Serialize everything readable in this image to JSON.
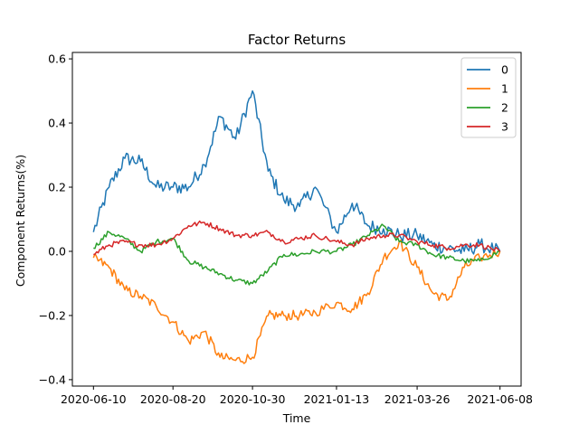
{
  "chart_data": {
    "type": "line",
    "title": "Factor Returns",
    "xlabel": "Time",
    "ylabel": "Component Returns(%)",
    "x_start": "2020-06-10",
    "x_end": "2021-06-08",
    "x_ticks": [
      "2020-06-10",
      "2020-08-20",
      "2020-10-30",
      "2021-01-13",
      "2021-03-26",
      "2021-06-08"
    ],
    "ylim": [
      -0.42,
      0.62
    ],
    "y_ticks": [
      -0.4,
      -0.2,
      0.0,
      0.2,
      0.4,
      0.6
    ],
    "y_tick_labels": [
      "−0.4",
      "−0.2",
      "0.0",
      "0.2",
      "0.4",
      "0.6"
    ],
    "legend_position": "top-right",
    "grid": false,
    "series": [
      {
        "name": "0",
        "color": "#1f77b4",
        "x": [
          "2020-06-10",
          "2020-06-24",
          "2020-07-08",
          "2020-07-22",
          "2020-08-05",
          "2020-08-20",
          "2020-09-03",
          "2020-09-17",
          "2020-10-01",
          "2020-10-15",
          "2020-10-30",
          "2020-11-13",
          "2020-11-27",
          "2020-12-11",
          "2020-12-25",
          "2021-01-13",
          "2021-01-27",
          "2021-02-10",
          "2021-02-24",
          "2021-03-10",
          "2021-03-26",
          "2021-04-09",
          "2021-04-23",
          "2021-05-07",
          "2021-05-21",
          "2021-06-08"
        ],
        "values": [
          0.06,
          0.2,
          0.29,
          0.28,
          0.2,
          0.2,
          0.2,
          0.27,
          0.42,
          0.35,
          0.5,
          0.25,
          0.16,
          0.14,
          0.2,
          0.06,
          0.15,
          0.08,
          0.07,
          0.05,
          0.05,
          0.02,
          0.01,
          0.0,
          0.02,
          0.0
        ]
      },
      {
        "name": "1",
        "color": "#ff7f0e",
        "x": [
          "2020-06-10",
          "2020-06-24",
          "2020-07-08",
          "2020-07-22",
          "2020-08-05",
          "2020-08-20",
          "2020-09-03",
          "2020-09-17",
          "2020-10-01",
          "2020-10-15",
          "2020-10-30",
          "2020-11-13",
          "2020-11-27",
          "2020-12-11",
          "2020-12-25",
          "2021-01-13",
          "2021-01-27",
          "2021-02-10",
          "2021-02-24",
          "2021-03-10",
          "2021-03-26",
          "2021-04-09",
          "2021-04-23",
          "2021-05-07",
          "2021-05-21",
          "2021-06-08"
        ],
        "values": [
          -0.02,
          -0.05,
          -0.12,
          -0.14,
          -0.17,
          -0.22,
          -0.28,
          -0.25,
          -0.33,
          -0.34,
          -0.33,
          -0.2,
          -0.2,
          -0.2,
          -0.19,
          -0.16,
          -0.18,
          -0.13,
          -0.02,
          0.03,
          -0.05,
          -0.13,
          -0.15,
          -0.05,
          -0.02,
          0.0
        ]
      },
      {
        "name": "2",
        "color": "#2ca02c",
        "x": [
          "2020-06-10",
          "2020-06-24",
          "2020-07-08",
          "2020-07-22",
          "2020-08-05",
          "2020-08-20",
          "2020-09-03",
          "2020-09-17",
          "2020-10-01",
          "2020-10-15",
          "2020-10-30",
          "2020-11-13",
          "2020-11-27",
          "2020-12-11",
          "2020-12-25",
          "2021-01-13",
          "2021-01-27",
          "2021-02-10",
          "2021-02-24",
          "2021-03-10",
          "2021-03-26",
          "2021-04-09",
          "2021-04-23",
          "2021-05-07",
          "2021-05-21",
          "2021-06-08"
        ],
        "values": [
          0.01,
          0.06,
          0.04,
          0.0,
          0.03,
          0.04,
          -0.03,
          -0.05,
          -0.07,
          -0.09,
          -0.1,
          -0.06,
          -0.01,
          -0.01,
          0.0,
          0.0,
          0.02,
          0.05,
          0.08,
          0.03,
          0.02,
          -0.01,
          -0.02,
          -0.03,
          -0.03,
          0.0
        ]
      },
      {
        "name": "3",
        "color": "#d62728",
        "x": [
          "2020-06-10",
          "2020-06-24",
          "2020-07-08",
          "2020-07-22",
          "2020-08-05",
          "2020-08-20",
          "2020-09-03",
          "2020-09-17",
          "2020-10-01",
          "2020-10-15",
          "2020-10-30",
          "2020-11-13",
          "2020-11-27",
          "2020-12-11",
          "2020-12-25",
          "2021-01-13",
          "2021-01-27",
          "2021-02-10",
          "2021-02-24",
          "2021-03-10",
          "2021-03-26",
          "2021-04-09",
          "2021-04-23",
          "2021-05-07",
          "2021-05-21",
          "2021-06-08"
        ],
        "values": [
          -0.01,
          0.02,
          0.03,
          0.02,
          0.02,
          0.04,
          0.08,
          0.09,
          0.07,
          0.05,
          0.05,
          0.06,
          0.03,
          0.04,
          0.05,
          0.03,
          0.02,
          0.04,
          0.05,
          0.05,
          0.03,
          0.02,
          0.01,
          0.02,
          0.02,
          0.0
        ]
      }
    ]
  }
}
